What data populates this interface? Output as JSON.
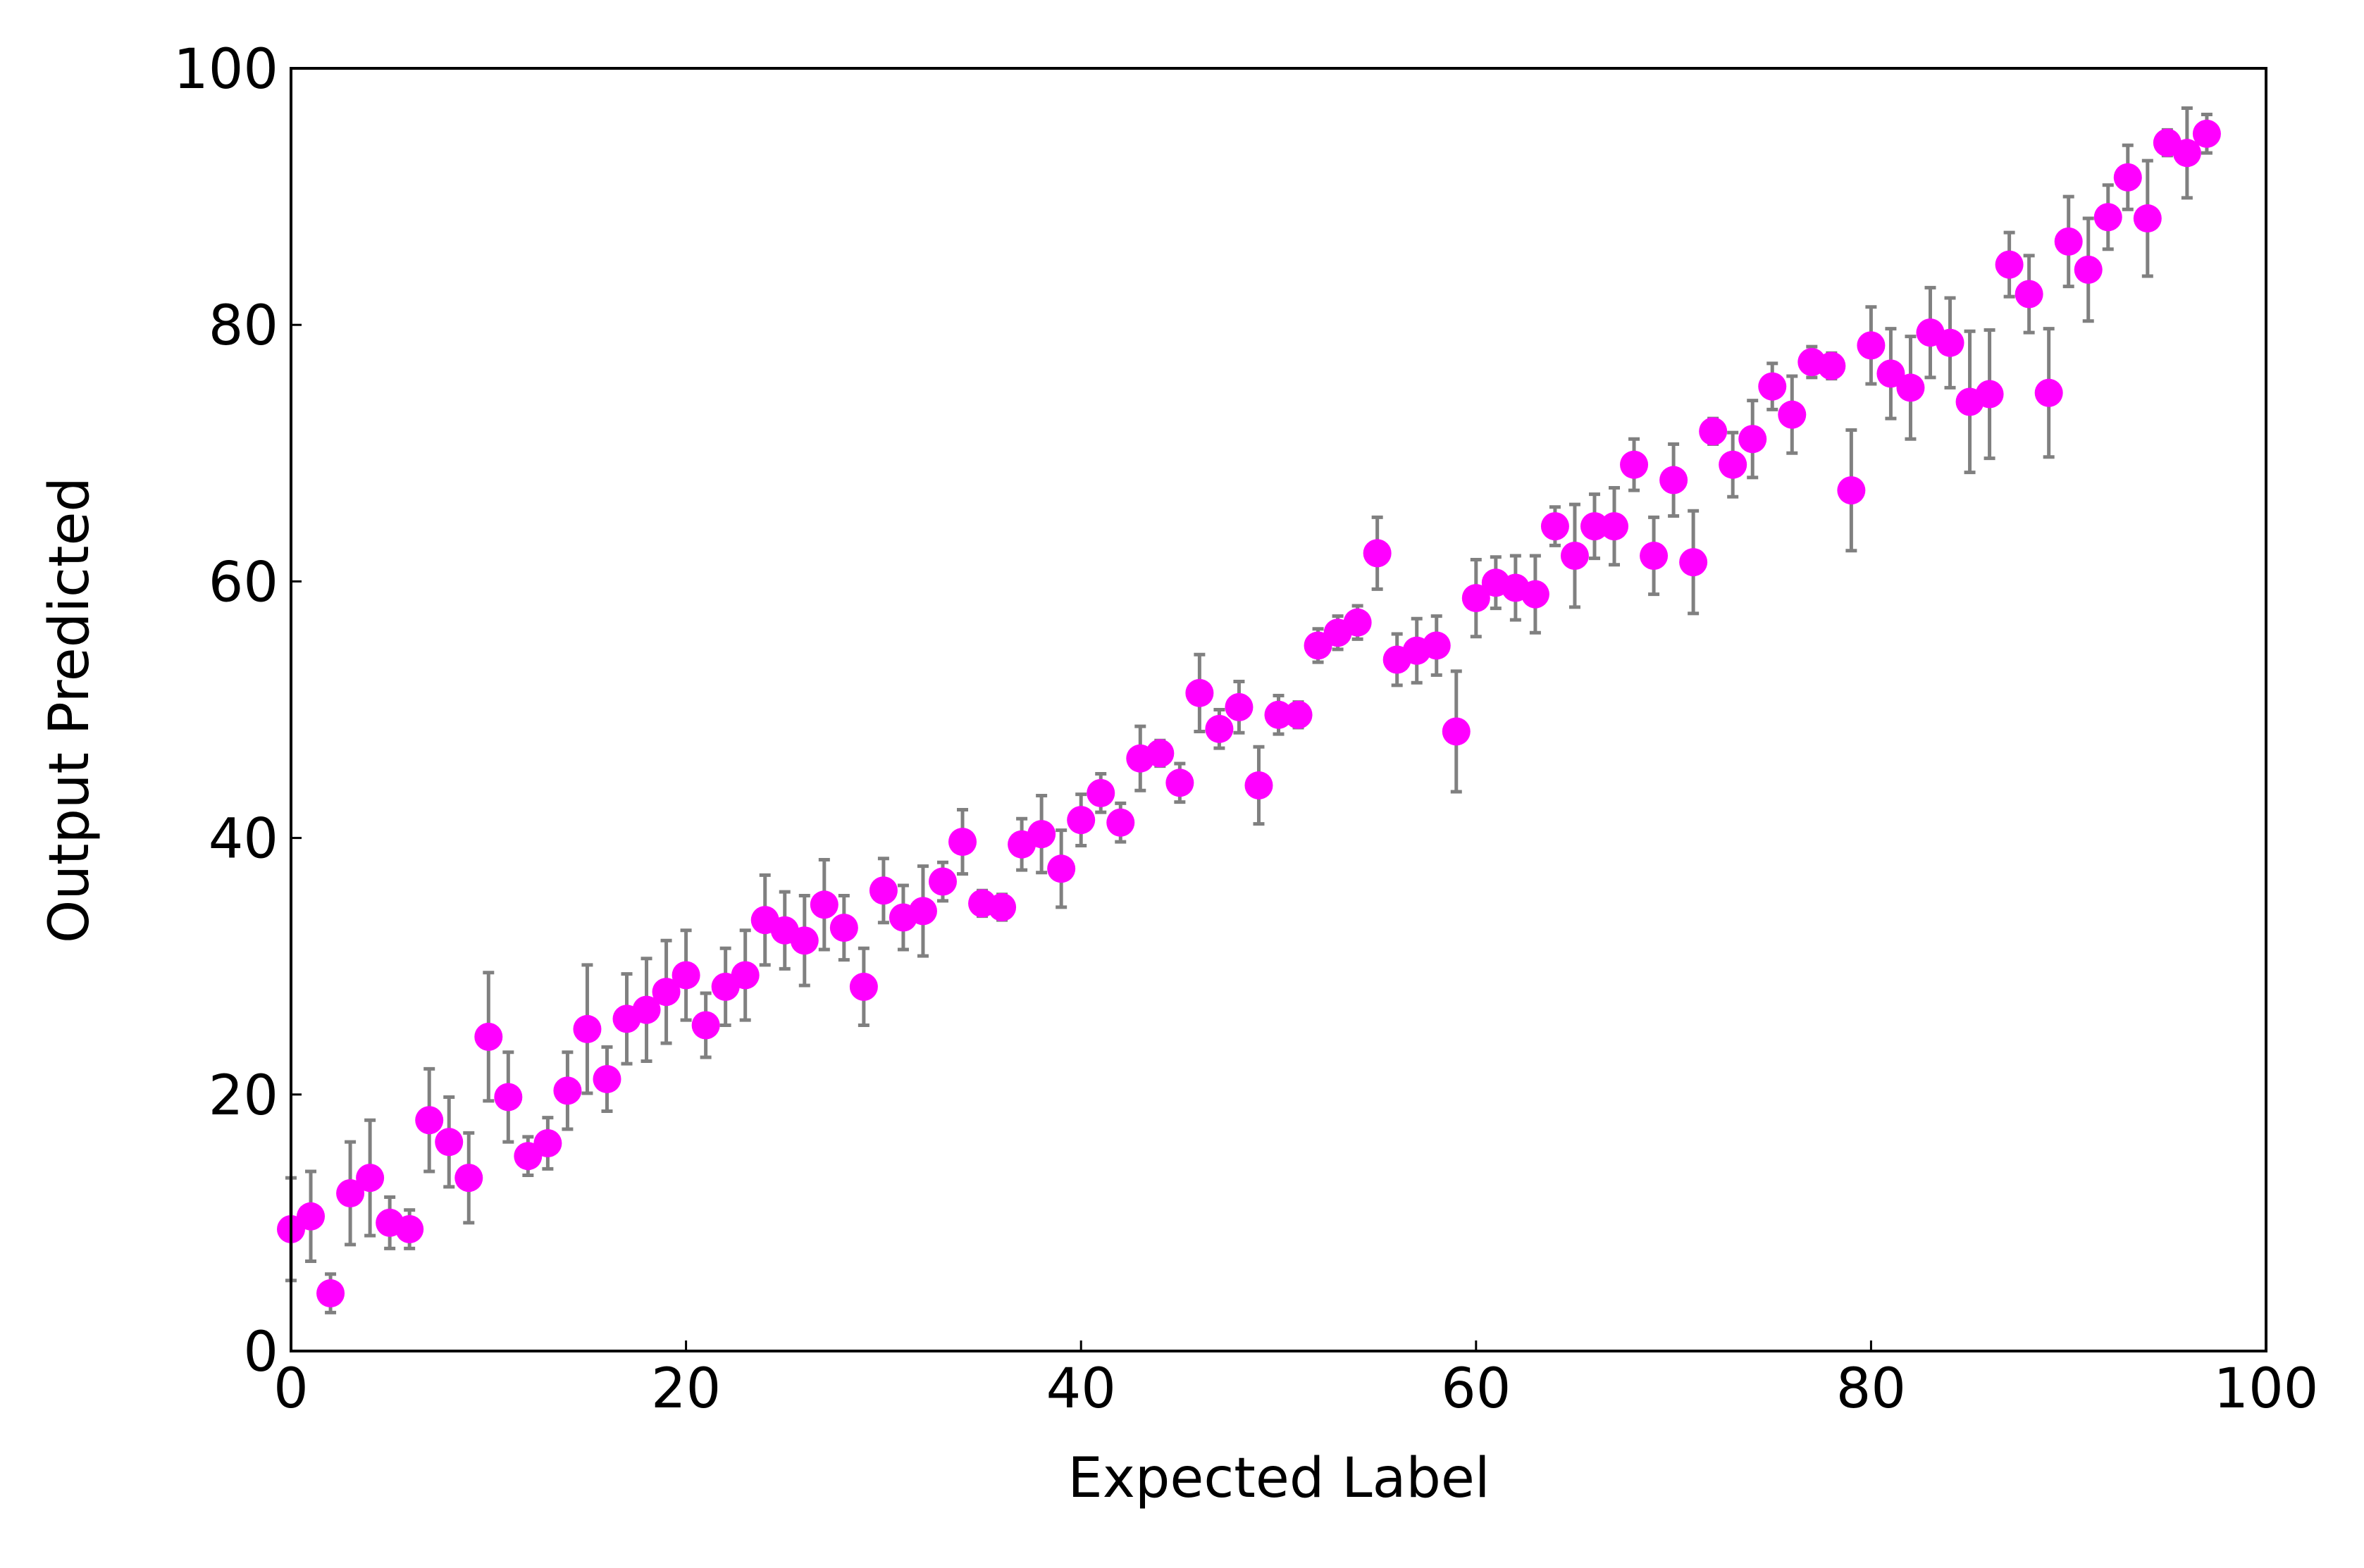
{
  "chart_data": {
    "type": "errorbar",
    "xlabel": "Expected Label",
    "ylabel": "Output Predicted",
    "xlim": [
      0,
      100
    ],
    "ylim": [
      0,
      100
    ],
    "xticks": [
      0,
      20,
      40,
      60,
      80,
      100
    ],
    "yticks": [
      0,
      20,
      40,
      60,
      80,
      100
    ],
    "grid": false,
    "series": [
      {
        "color": "#ff00ff",
        "error_color": "#808080",
        "x": [
          0,
          1,
          2,
          3,
          4,
          5,
          6,
          7,
          8,
          9,
          10,
          11,
          12,
          13,
          14,
          15,
          16,
          17,
          18,
          19,
          20,
          21,
          22,
          23,
          24,
          25,
          26,
          27,
          28,
          29,
          30,
          31,
          32,
          33,
          34,
          35,
          36,
          37,
          38,
          39,
          40,
          41,
          42,
          43,
          44,
          45,
          46,
          47,
          48,
          49,
          50,
          51,
          52,
          53,
          54,
          55,
          56,
          57,
          58,
          59,
          60,
          61,
          62,
          63,
          64,
          65,
          66,
          67,
          68,
          69,
          70,
          71,
          72,
          73,
          74,
          75,
          76,
          77,
          78,
          79,
          80,
          81,
          82,
          83,
          84,
          85,
          86,
          87,
          88,
          89,
          90,
          91,
          92,
          93,
          94,
          95,
          96,
          97
        ],
        "values": [
          9.5,
          10.5,
          4.5,
          12.3,
          13.5,
          10,
          9.5,
          18,
          16.3,
          13.5,
          24.5,
          19.8,
          15.2,
          16.2,
          20.3,
          25.1,
          21.2,
          25.9,
          26.6,
          28,
          29.3,
          25.4,
          28.4,
          29.3,
          33.6,
          32.8,
          32,
          34.8,
          33,
          28.4,
          35.9,
          33.8,
          34.3,
          36.6,
          39.7,
          34.9,
          34.6,
          39.5,
          40.3,
          37.6,
          41.4,
          43.5,
          41.2,
          46.2,
          46.6,
          44.3,
          51.3,
          48.5,
          50.2,
          44.1,
          49.6,
          49.6,
          55,
          56,
          56.8,
          62.2,
          53.9,
          54.6,
          55,
          48.3,
          58.7,
          59.9,
          59.5,
          59,
          64.3,
          62,
          64.3,
          64.3,
          69.1,
          62,
          67.9,
          61.5,
          71.7,
          69.1,
          71.1,
          75.2,
          73,
          77.1,
          76.8,
          67.1,
          78.4,
          76.2,
          75.1,
          79.4,
          78.6,
          74,
          74.6,
          84.7,
          82.4,
          74.7,
          86.5,
          84.3,
          88.4,
          91.5,
          88.3,
          94.2,
          93.4,
          94.9
        ],
        "errors": [
          4,
          3.5,
          1.5,
          4,
          4.5,
          2,
          1.5,
          4,
          3.5,
          3.5,
          5,
          3.5,
          1.5,
          2,
          3,
          5,
          2.5,
          3.5,
          4,
          4,
          3.5,
          2.5,
          3,
          3.5,
          3.5,
          3,
          3.5,
          3.5,
          2.5,
          3,
          2.5,
          2.5,
          3.5,
          1.5,
          2.5,
          1,
          1,
          2,
          3,
          3,
          2,
          1.5,
          1.5,
          2.5,
          1,
          1.5,
          3,
          1.5,
          2,
          3,
          1.5,
          1,
          1.3,
          1.3,
          1.3,
          2.8,
          2,
          2.5,
          2.3,
          4.7,
          3,
          2,
          2.5,
          3,
          1.5,
          4,
          2.5,
          3,
          2,
          3,
          2.8,
          4,
          1,
          2.5,
          3,
          1.8,
          3,
          1.2,
          1,
          4.7,
          3,
          3.5,
          4,
          3.5,
          3.5,
          5.5,
          5,
          2.5,
          3,
          5,
          3.5,
          4,
          2.5,
          2.5,
          4.5,
          1,
          3.5,
          1.5
        ]
      }
    ]
  }
}
